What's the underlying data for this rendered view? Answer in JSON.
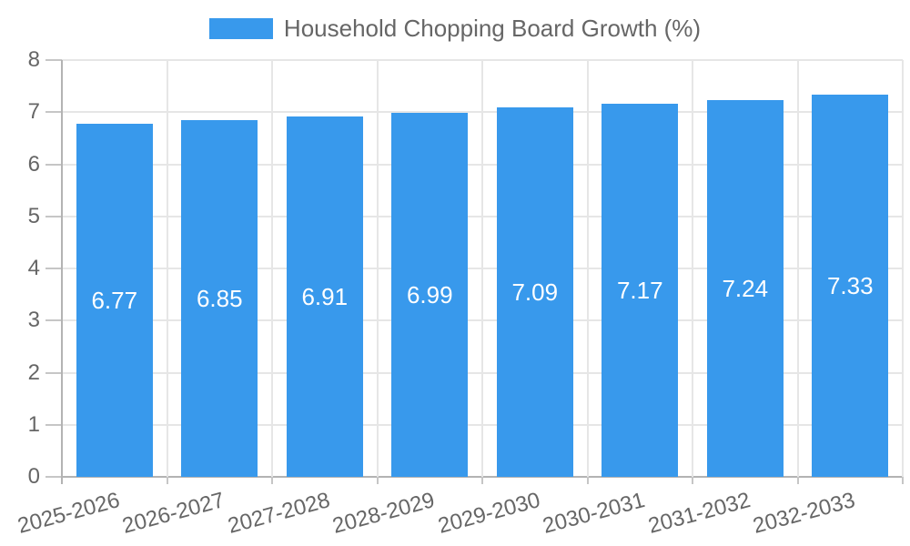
{
  "chart_data": {
    "type": "bar",
    "legend_label": "Household Chopping Board Growth (%)",
    "legend_position": "top",
    "categories": [
      "2025-2026",
      "2026-2027",
      "2027-2028",
      "2028-2029",
      "2029-2030",
      "2030-2031",
      "2031-2032",
      "2032-2033"
    ],
    "series": [
      {
        "name": "Household Chopping Board Growth (%)",
        "values": [
          6.77,
          6.85,
          6.91,
          6.99,
          7.09,
          7.17,
          7.24,
          7.33
        ]
      }
    ],
    "value_labels": [
      "6.77",
      "6.85",
      "6.91",
      "6.99",
      "7.09",
      "7.17",
      "7.24",
      "7.33"
    ],
    "xlabel": "",
    "ylabel": "",
    "ylim": [
      0,
      8
    ],
    "yticks": [
      0,
      1,
      2,
      3,
      4,
      5,
      6,
      7,
      8
    ],
    "grid": true,
    "colors": {
      "bar": "#3899EC",
      "label_text": "#666666",
      "value_label_text": "#FFFFFF",
      "grid_line": "#E6E6E6",
      "axis_line": "#B3B3B3",
      "tick_mark": "#C6C6C6",
      "background": "#FFFFFF"
    }
  }
}
